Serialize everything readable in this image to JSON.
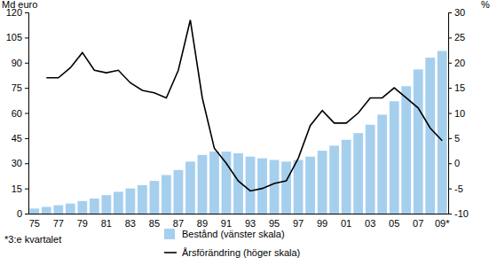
{
  "chart_data": {
    "type": "bar",
    "ylabel": "Md euro",
    "y2label": "%",
    "annotations": [
      "*3:e kvartalet"
    ],
    "legend": "bottom",
    "categories": [
      "75",
      null,
      "77",
      null,
      "79",
      null,
      "81",
      null,
      "83",
      null,
      "85",
      null,
      "87",
      null,
      "89",
      null,
      "91",
      null,
      "93",
      null,
      "95",
      null,
      "97",
      null,
      "99",
      null,
      "01",
      null,
      "03",
      null,
      "05",
      null,
      "07",
      null,
      "09*"
    ],
    "series": [
      {
        "name": "Bestånd (vänster skala)",
        "type": "bar",
        "color": "#a6cfee",
        "values": [
          3,
          4,
          5,
          6,
          7.5,
          9,
          11,
          13,
          15,
          17,
          19.5,
          23,
          26,
          31,
          35,
          37,
          37,
          36,
          34,
          33,
          32,
          31,
          32,
          34,
          37.5,
          40.5,
          44,
          48,
          53,
          59,
          67,
          76,
          86,
          93,
          97
        ]
      },
      {
        "name": "Årsförändring (höger skala)",
        "type": "line",
        "axis": "y2",
        "color": "#000000",
        "values": [
          null,
          17,
          17,
          19,
          22,
          18.5,
          18,
          18.5,
          16,
          14.5,
          14,
          13,
          18.5,
          28.5,
          13,
          3,
          0,
          -3.5,
          -5.5,
          -5,
          -4,
          -3.5,
          1,
          7.5,
          10.5,
          8,
          8,
          10,
          13,
          13,
          15,
          13,
          11,
          7,
          4.5
        ]
      }
    ],
    "ylim": [
      0,
      120
    ],
    "yticks": [
      0,
      15,
      30,
      45,
      60,
      75,
      90,
      105,
      120
    ],
    "y2lim": [
      -10,
      30
    ],
    "y2ticks": [
      -10,
      -5,
      0,
      5,
      10,
      15,
      20,
      25,
      30
    ]
  }
}
